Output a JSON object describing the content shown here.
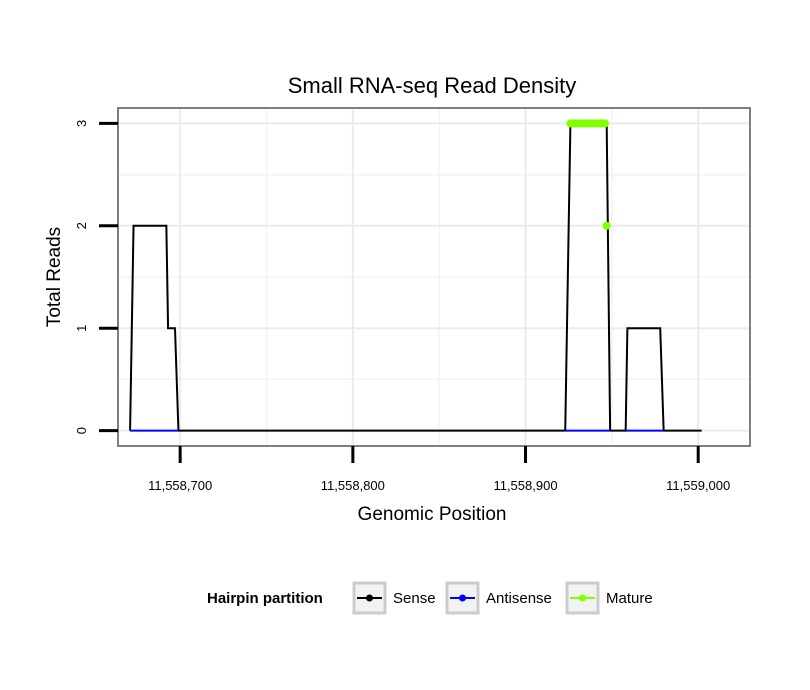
{
  "chart_data": {
    "type": "line",
    "title": "Small RNA-seq Read Density",
    "xlabel": "Genomic Position",
    "ylabel": "Total Reads",
    "xlim": [
      11558664,
      11559030
    ],
    "ylim": [
      -0.15,
      3.15
    ],
    "x_ticks": [
      11558700,
      11558800,
      11558900,
      11559000
    ],
    "x_tick_labels": [
      "11,558,700",
      "11,558,800",
      "11,558,900",
      "11,559,000"
    ],
    "y_ticks": [
      0,
      1,
      2,
      3
    ],
    "y_tick_labels": [
      "0",
      "1",
      "2",
      "3"
    ],
    "grid": true,
    "legend": {
      "title": "Hairpin partition",
      "position": "bottom",
      "entries": [
        {
          "label": "Sense",
          "color": "#000000"
        },
        {
          "label": "Antisense",
          "color": "#0000ff"
        },
        {
          "label": "Mature",
          "color": "#7fff00"
        }
      ]
    },
    "series": [
      {
        "name": "Sense",
        "color": "#000000",
        "style": "line",
        "x": [
          11558671,
          11558673,
          11558692,
          11558693,
          11558697,
          11558699,
          11558907,
          11558923,
          11558924,
          11558926,
          11558947,
          11558949,
          11558958,
          11558959,
          11558978,
          11558980,
          11559002
        ],
        "y": [
          0,
          2,
          2,
          1,
          1,
          0,
          0,
          0,
          1,
          3,
          3,
          0,
          0,
          1,
          1,
          0,
          0
        ]
      },
      {
        "name": "Antisense",
        "color": "#0000ff",
        "style": "line",
        "x": [
          11558671,
          11558699,
          11558923,
          11558949,
          11558958,
          11558980
        ],
        "y": [
          0,
          0,
          0,
          0,
          0,
          0
        ],
        "segments": [
          [
            11558671,
            11558699
          ],
          [
            11558923,
            11558949
          ],
          [
            11558958,
            11558980
          ]
        ]
      },
      {
        "name": "Mature",
        "color": "#7fff00",
        "style": "points",
        "x": [
          11558926,
          11558927,
          11558928,
          11558929,
          11558930,
          11558931,
          11558932,
          11558933,
          11558934,
          11558935,
          11558936,
          11558937,
          11558938,
          11558939,
          11558940,
          11558941,
          11558942,
          11558943,
          11558944,
          11558945,
          11558946,
          11558947
        ],
        "y": [
          3,
          3,
          3,
          3,
          3,
          3,
          3,
          3,
          3,
          3,
          3,
          3,
          3,
          3,
          3,
          3,
          3,
          3,
          3,
          3,
          3,
          2
        ]
      }
    ]
  }
}
